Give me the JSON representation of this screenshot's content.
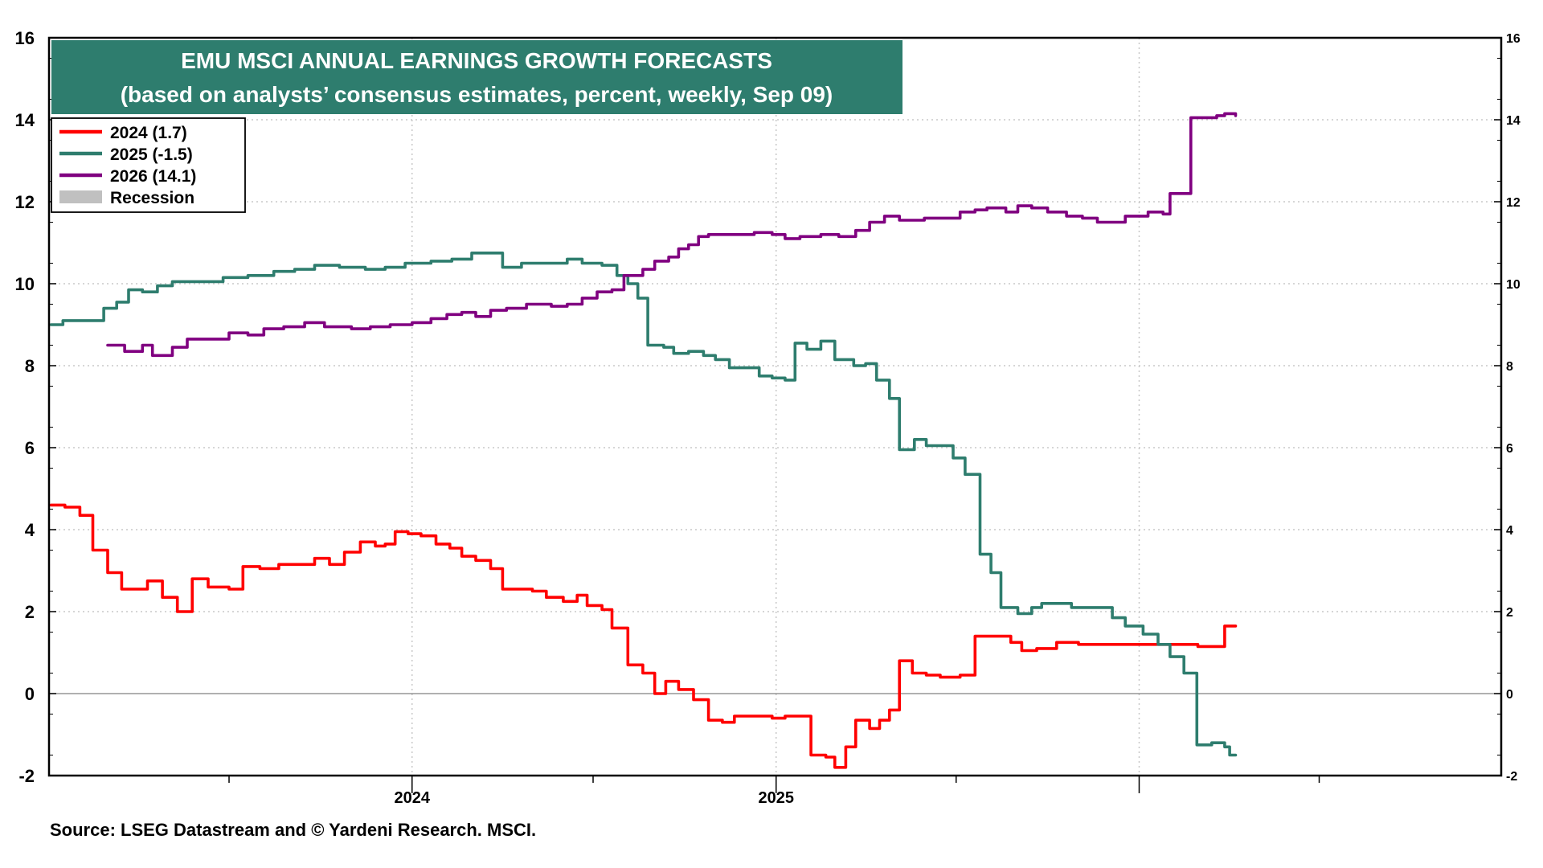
{
  "chart_data": {
    "type": "line",
    "title": "EMU MSCI ANNUAL EARNINGS GROWTH FORECASTS",
    "subtitle": "(based on analysts’ consensus estimates, percent, weekly, Sep 09)",
    "source": "Source: LSEG Datastream and © Yardeni Research. MSCI.",
    "ylim": [
      -2,
      16
    ],
    "y_ticks": [
      "16",
      "14",
      "12",
      "10",
      "8",
      "6",
      "4",
      "2",
      "0",
      "-2"
    ],
    "y_tick_values": [
      16,
      14,
      12,
      10,
      8,
      6,
      4,
      2,
      0,
      -2
    ],
    "xlim": [
      "2023-01-01",
      "2026-12-31"
    ],
    "x_labels": [
      {
        "label": "2024",
        "date": "2024-01-01"
      },
      {
        "label": "2025",
        "date": "2025-01-01"
      }
    ],
    "x_minor_ticks": [
      "2023-07-01",
      "2024-07-01",
      "2025-07-01",
      "2026-07-01"
    ],
    "x_year_ticks": [
      "2024-01-01",
      "2025-01-01",
      "2026-01-01"
    ],
    "grid": true,
    "zero_line": true,
    "legend_position": "top-left",
    "legend": [
      {
        "label": "2024 (1.7)",
        "color": "#ff0000"
      },
      {
        "label": "2025 (-1.5)",
        "color": "#2e7d6e"
      },
      {
        "label": "2026 (14.1)",
        "color": "#800080"
      },
      {
        "label": "Recession",
        "color": "#c0c0c0"
      }
    ],
    "series": [
      {
        "name": "2024 (1.7)",
        "color": "#ff0000",
        "points": [
          [
            "2023-01-03",
            4.6
          ],
          [
            "2023-01-17",
            4.55
          ],
          [
            "2023-02-01",
            4.35
          ],
          [
            "2023-02-14",
            3.5
          ],
          [
            "2023-03-01",
            2.95
          ],
          [
            "2023-03-15",
            2.55
          ],
          [
            "2023-04-01",
            2.55
          ],
          [
            "2023-04-10",
            2.75
          ],
          [
            "2023-04-25",
            2.35
          ],
          [
            "2023-05-10",
            2.0
          ],
          [
            "2023-05-25",
            2.8
          ],
          [
            "2023-06-10",
            2.6
          ],
          [
            "2023-07-01",
            2.55
          ],
          [
            "2023-07-15",
            3.1
          ],
          [
            "2023-08-01",
            3.05
          ],
          [
            "2023-08-20",
            3.15
          ],
          [
            "2023-09-10",
            3.15
          ],
          [
            "2023-09-25",
            3.3
          ],
          [
            "2023-10-10",
            3.15
          ],
          [
            "2023-10-25",
            3.45
          ],
          [
            "2023-11-10",
            3.7
          ],
          [
            "2023-11-25",
            3.6
          ],
          [
            "2023-12-05",
            3.65
          ],
          [
            "2023-12-15",
            3.95
          ],
          [
            "2023-12-28",
            3.9
          ],
          [
            "2024-01-10",
            3.85
          ],
          [
            "2024-01-25",
            3.65
          ],
          [
            "2024-02-08",
            3.55
          ],
          [
            "2024-02-20",
            3.35
          ],
          [
            "2024-03-05",
            3.25
          ],
          [
            "2024-03-20",
            3.05
          ],
          [
            "2024-04-01",
            2.55
          ],
          [
            "2024-04-15",
            2.55
          ],
          [
            "2024-05-01",
            2.5
          ],
          [
            "2024-05-15",
            2.35
          ],
          [
            "2024-06-01",
            2.25
          ],
          [
            "2024-06-15",
            2.4
          ],
          [
            "2024-06-25",
            2.15
          ],
          [
            "2024-07-10",
            2.05
          ],
          [
            "2024-07-20",
            1.6
          ],
          [
            "2024-08-05",
            0.7
          ],
          [
            "2024-08-20",
            0.5
          ],
          [
            "2024-09-01",
            0.0
          ],
          [
            "2024-09-12",
            0.3
          ],
          [
            "2024-09-25",
            0.1
          ],
          [
            "2024-10-10",
            -0.15
          ],
          [
            "2024-10-25",
            -0.65
          ],
          [
            "2024-11-08",
            -0.7
          ],
          [
            "2024-11-20",
            -0.55
          ],
          [
            "2024-12-10",
            -0.55
          ],
          [
            "2024-12-28",
            -0.6
          ],
          [
            "2025-01-10",
            -0.55
          ],
          [
            "2025-01-25",
            -0.55
          ],
          [
            "2025-02-05",
            -1.5
          ],
          [
            "2025-02-20",
            -1.55
          ],
          [
            "2025-03-01",
            -1.8
          ],
          [
            "2025-03-12",
            -1.3
          ],
          [
            "2025-03-22",
            -0.65
          ],
          [
            "2025-04-05",
            -0.85
          ],
          [
            "2025-04-15",
            -0.65
          ],
          [
            "2025-04-25",
            -0.4
          ],
          [
            "2025-05-05",
            0.8
          ],
          [
            "2025-05-18",
            0.5
          ],
          [
            "2025-06-01",
            0.45
          ],
          [
            "2025-06-15",
            0.4
          ],
          [
            "2025-07-05",
            0.45
          ],
          [
            "2025-07-20",
            1.4
          ],
          [
            "2025-08-10",
            1.4
          ],
          [
            "2025-08-25",
            1.25
          ],
          [
            "2025-09-05",
            1.05
          ],
          [
            "2025-09-20",
            1.1
          ],
          [
            "2025-10-10",
            1.25
          ],
          [
            "2025-11-01",
            1.2
          ],
          [
            "2025-12-01",
            1.2
          ],
          [
            "2026-01-01",
            1.2
          ],
          [
            "2026-02-01",
            1.2
          ],
          [
            "2026-03-01",
            1.15
          ],
          [
            "2026-03-20",
            1.15
          ],
          [
            "2026-03-28",
            1.65
          ],
          [
            "2026-04-08",
            1.65
          ]
        ]
      },
      {
        "name": "2025 (-1.5)",
        "color": "#2e7d6e",
        "points": [
          [
            "2023-01-03",
            9.0
          ],
          [
            "2023-01-15",
            9.1
          ],
          [
            "2023-02-10",
            9.1
          ],
          [
            "2023-02-25",
            9.4
          ],
          [
            "2023-03-10",
            9.55
          ],
          [
            "2023-03-22",
            9.85
          ],
          [
            "2023-04-05",
            9.8
          ],
          [
            "2023-04-20",
            9.95
          ],
          [
            "2023-05-05",
            10.05
          ],
          [
            "2023-06-01",
            10.05
          ],
          [
            "2023-06-25",
            10.15
          ],
          [
            "2023-07-20",
            10.2
          ],
          [
            "2023-08-15",
            10.3
          ],
          [
            "2023-09-05",
            10.35
          ],
          [
            "2023-09-25",
            10.45
          ],
          [
            "2023-10-20",
            10.4
          ],
          [
            "2023-11-15",
            10.35
          ],
          [
            "2023-12-05",
            10.4
          ],
          [
            "2023-12-25",
            10.5
          ],
          [
            "2024-01-20",
            10.55
          ],
          [
            "2024-02-10",
            10.6
          ],
          [
            "2024-03-01",
            10.75
          ],
          [
            "2024-03-20",
            10.75
          ],
          [
            "2024-04-01",
            10.4
          ],
          [
            "2024-04-20",
            10.5
          ],
          [
            "2024-05-25",
            10.5
          ],
          [
            "2024-06-05",
            10.6
          ],
          [
            "2024-06-20",
            10.5
          ],
          [
            "2024-07-10",
            10.45
          ],
          [
            "2024-07-25",
            10.2
          ],
          [
            "2024-08-05",
            10.0
          ],
          [
            "2024-08-15",
            9.65
          ],
          [
            "2024-08-25",
            8.5
          ],
          [
            "2024-09-10",
            8.45
          ],
          [
            "2024-09-20",
            8.3
          ],
          [
            "2024-10-05",
            8.35
          ],
          [
            "2024-10-20",
            8.25
          ],
          [
            "2024-11-01",
            8.15
          ],
          [
            "2024-11-15",
            7.95
          ],
          [
            "2024-12-05",
            7.95
          ],
          [
            "2024-12-15",
            7.75
          ],
          [
            "2024-12-28",
            7.7
          ],
          [
            "2025-01-10",
            7.65
          ],
          [
            "2025-01-20",
            8.55
          ],
          [
            "2025-02-01",
            8.4
          ],
          [
            "2025-02-15",
            8.6
          ],
          [
            "2025-03-01",
            8.15
          ],
          [
            "2025-03-20",
            8.0
          ],
          [
            "2025-04-01",
            8.05
          ],
          [
            "2025-04-12",
            7.65
          ],
          [
            "2025-04-25",
            7.2
          ],
          [
            "2025-05-05",
            5.95
          ],
          [
            "2025-05-20",
            6.2
          ],
          [
            "2025-06-01",
            6.05
          ],
          [
            "2025-06-15",
            6.05
          ],
          [
            "2025-06-28",
            5.75
          ],
          [
            "2025-07-10",
            5.35
          ],
          [
            "2025-07-25",
            3.4
          ],
          [
            "2025-08-05",
            2.95
          ],
          [
            "2025-08-15",
            2.1
          ],
          [
            "2025-09-01",
            1.95
          ],
          [
            "2025-09-15",
            2.1
          ],
          [
            "2025-09-25",
            2.2
          ],
          [
            "2025-10-15",
            2.2
          ],
          [
            "2025-10-25",
            2.1
          ],
          [
            "2025-11-20",
            2.1
          ],
          [
            "2025-12-05",
            1.85
          ],
          [
            "2025-12-18",
            1.65
          ],
          [
            "2026-01-05",
            1.45
          ],
          [
            "2026-01-20",
            1.2
          ],
          [
            "2026-02-01",
            0.9
          ],
          [
            "2026-02-15",
            0.5
          ],
          [
            "2026-02-28",
            -1.25
          ],
          [
            "2026-03-15",
            -1.2
          ],
          [
            "2026-03-28",
            -1.3
          ],
          [
            "2026-04-02",
            -1.5
          ],
          [
            "2026-04-08",
            -1.5
          ]
        ]
      },
      {
        "name": "2026 (14.1)",
        "color": "#800080",
        "points": [
          [
            "2023-03-01",
            8.5
          ],
          [
            "2023-03-18",
            8.35
          ],
          [
            "2023-04-05",
            8.5
          ],
          [
            "2023-04-15",
            8.25
          ],
          [
            "2023-05-05",
            8.45
          ],
          [
            "2023-05-20",
            8.65
          ],
          [
            "2023-06-15",
            8.65
          ],
          [
            "2023-07-01",
            8.8
          ],
          [
            "2023-07-20",
            8.75
          ],
          [
            "2023-08-05",
            8.9
          ],
          [
            "2023-08-25",
            8.95
          ],
          [
            "2023-09-15",
            9.05
          ],
          [
            "2023-10-05",
            8.95
          ],
          [
            "2023-11-01",
            8.9
          ],
          [
            "2023-11-20",
            8.95
          ],
          [
            "2023-12-10",
            9.0
          ],
          [
            "2024-01-01",
            9.05
          ],
          [
            "2024-01-20",
            9.15
          ],
          [
            "2024-02-05",
            9.25
          ],
          [
            "2024-02-20",
            9.3
          ],
          [
            "2024-03-05",
            9.2
          ],
          [
            "2024-03-20",
            9.35
          ],
          [
            "2024-04-05",
            9.4
          ],
          [
            "2024-04-25",
            9.5
          ],
          [
            "2024-05-20",
            9.45
          ],
          [
            "2024-06-05",
            9.5
          ],
          [
            "2024-06-20",
            9.65
          ],
          [
            "2024-07-05",
            9.8
          ],
          [
            "2024-07-20",
            9.85
          ],
          [
            "2024-08-01",
            10.2
          ],
          [
            "2024-08-20",
            10.35
          ],
          [
            "2024-09-01",
            10.55
          ],
          [
            "2024-09-15",
            10.65
          ],
          [
            "2024-09-25",
            10.85
          ],
          [
            "2024-10-05",
            10.95
          ],
          [
            "2024-10-15",
            11.15
          ],
          [
            "2024-10-25",
            11.2
          ],
          [
            "2024-11-20",
            11.2
          ],
          [
            "2024-12-10",
            11.25
          ],
          [
            "2024-12-28",
            11.2
          ],
          [
            "2025-01-10",
            11.1
          ],
          [
            "2025-01-25",
            11.15
          ],
          [
            "2025-02-15",
            11.2
          ],
          [
            "2025-03-05",
            11.15
          ],
          [
            "2025-03-22",
            11.3
          ],
          [
            "2025-04-05",
            11.5
          ],
          [
            "2025-04-20",
            11.65
          ],
          [
            "2025-05-05",
            11.55
          ],
          [
            "2025-05-30",
            11.6
          ],
          [
            "2025-06-20",
            11.6
          ],
          [
            "2025-07-05",
            11.75
          ],
          [
            "2025-07-20",
            11.8
          ],
          [
            "2025-08-01",
            11.85
          ],
          [
            "2025-08-20",
            11.75
          ],
          [
            "2025-09-01",
            11.9
          ],
          [
            "2025-09-15",
            11.85
          ],
          [
            "2025-10-01",
            11.75
          ],
          [
            "2025-10-20",
            11.65
          ],
          [
            "2025-11-05",
            11.6
          ],
          [
            "2025-11-20",
            11.5
          ],
          [
            "2025-12-05",
            11.5
          ],
          [
            "2025-12-18",
            11.65
          ],
          [
            "2026-01-10",
            11.75
          ],
          [
            "2026-01-25",
            11.7
          ],
          [
            "2026-02-01",
            12.2
          ],
          [
            "2026-02-15",
            12.2
          ],
          [
            "2026-02-22",
            14.05
          ],
          [
            "2026-03-10",
            14.05
          ],
          [
            "2026-03-20",
            14.1
          ],
          [
            "2026-03-28",
            14.15
          ],
          [
            "2026-04-08",
            14.1
          ]
        ]
      }
    ]
  },
  "colors": {
    "title_bg": "#2e7d6e",
    "frame": "#000000",
    "grid": "#c8c8c8",
    "zero_line": "#808080"
  }
}
